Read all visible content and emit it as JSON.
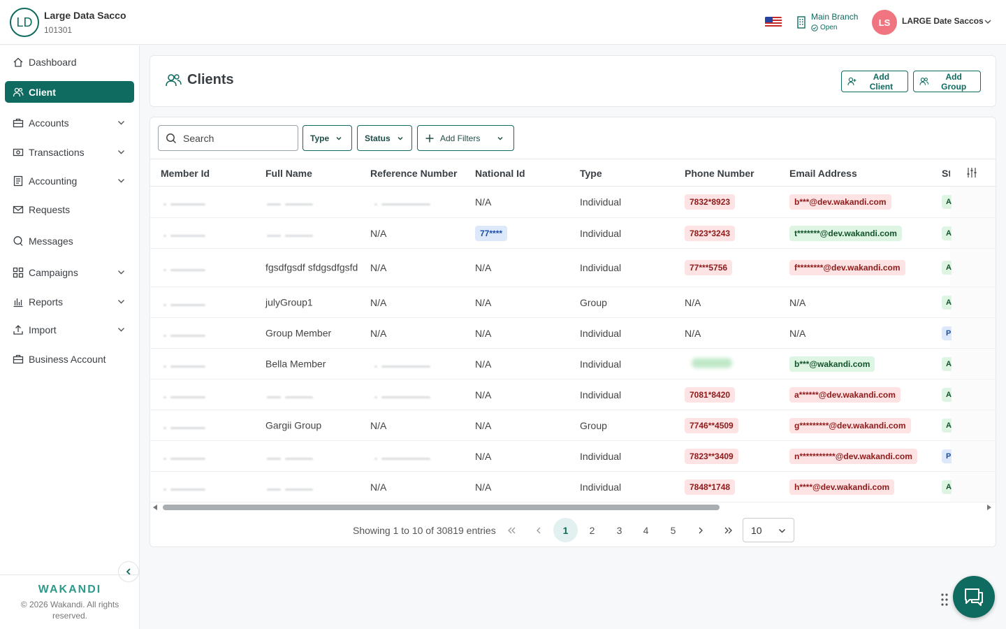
{
  "org": {
    "initials": "LD",
    "name": "Large Data Sacco",
    "code": "101301"
  },
  "topbar": {
    "branch_name": "Main Branch",
    "branch_status": "Open",
    "user_initials": "LS",
    "user_name": "LARGE Date Saccos"
  },
  "sidebar": {
    "items": [
      {
        "label": "Dashboard",
        "icon": "home-icon",
        "expandable": false,
        "active": false
      },
      {
        "label": "Client",
        "icon": "users-icon",
        "expandable": false,
        "active": true
      },
      {
        "label": "Accounts",
        "icon": "briefcase-icon",
        "expandable": true,
        "active": false
      },
      {
        "label": "Transactions",
        "icon": "cash-icon",
        "expandable": true,
        "active": false
      },
      {
        "label": "Accounting",
        "icon": "ledger-icon",
        "expandable": true,
        "active": false
      },
      {
        "label": "Requests",
        "icon": "mail-icon",
        "expandable": false,
        "active": false
      },
      {
        "label": "Messages",
        "icon": "chat-icon",
        "expandable": false,
        "active": false
      },
      {
        "label": "Campaigns",
        "icon": "grid-icon",
        "expandable": true,
        "active": false
      },
      {
        "label": "Reports",
        "icon": "bar-chart-icon",
        "expandable": true,
        "active": false
      },
      {
        "label": "Import",
        "icon": "upload-icon",
        "expandable": true,
        "active": false
      },
      {
        "label": "Business Account",
        "icon": "briefcase-icon",
        "expandable": false,
        "active": false
      }
    ],
    "footer_brand": "WAKANDI",
    "copyright": "© 2026 Wakandi. All rights reserved."
  },
  "header": {
    "title": "Clients",
    "add_client_label": "Add Client",
    "add_group_label": "Add Group"
  },
  "filters": {
    "search_placeholder": "Search",
    "type_label": "Type",
    "status_label": "Status",
    "add_filters_label": "Add Filters"
  },
  "table": {
    "columns": [
      "Member Id",
      "Full Name",
      "Reference Number",
      "National Id",
      "Type",
      "Phone Number",
      "Email Address",
      "St"
    ],
    "rows": [
      {
        "member_id": null,
        "full_name": null,
        "reference": null,
        "national_id": "N/A",
        "type": "Individual",
        "phone": "7832*8923",
        "phone_style": "red",
        "email": "b***@dev.wakandi.com",
        "email_style": "red",
        "status_style": "green",
        "status_letter": "A"
      },
      {
        "member_id": null,
        "full_name": null,
        "reference": "N/A",
        "national_id": "77****",
        "national_pill": true,
        "type": "Individual",
        "phone": "7823*3243",
        "phone_style": "red",
        "email": "t*******@dev.wakandi.com",
        "email_style": "green",
        "status_style": "green",
        "status_letter": "A"
      },
      {
        "member_id": null,
        "full_name": "fgsdfgsdf sfdgsdfgsfd",
        "reference": "N/A",
        "national_id": "N/A",
        "type": "Individual",
        "phone": "77***5756",
        "phone_style": "red",
        "email": "f********@dev.wakandi.com",
        "email_style": "red",
        "status_style": "green",
        "status_letter": "A"
      },
      {
        "member_id": null,
        "full_name": "julyGroup1",
        "reference": "N/A",
        "national_id": "N/A",
        "type": "Group",
        "phone": "N/A",
        "phone_style": "plain",
        "email": "N/A",
        "email_style": "plain",
        "status_style": "green",
        "status_letter": "A"
      },
      {
        "member_id": null,
        "full_name": "Group Member",
        "reference": "N/A",
        "national_id": "N/A",
        "type": "Individual",
        "phone": "N/A",
        "phone_style": "plain",
        "email": "N/A",
        "email_style": "plain",
        "status_style": "blue",
        "status_letter": "P"
      },
      {
        "member_id": null,
        "full_name": "Bella Member",
        "reference": null,
        "national_id": "N/A",
        "type": "Individual",
        "phone": null,
        "phone_style": "blurred",
        "email": "b***@wakandi.com",
        "email_style": "green",
        "status_style": "green",
        "status_letter": "A"
      },
      {
        "member_id": null,
        "full_name": null,
        "reference": null,
        "national_id": "N/A",
        "type": "Individual",
        "phone": "7081*8420",
        "phone_style": "red",
        "email": "a******@dev.wakandi.com",
        "email_style": "red",
        "status_style": "green",
        "status_letter": "A"
      },
      {
        "member_id": null,
        "full_name": "Gargii Group",
        "reference": "N/A",
        "national_id": "N/A",
        "type": "Group",
        "phone": "7746**4509",
        "phone_style": "red",
        "email": "g*********@dev.wakandi.com",
        "email_style": "red",
        "status_style": "green",
        "status_letter": "A"
      },
      {
        "member_id": null,
        "full_name": null,
        "reference": null,
        "national_id": "N/A",
        "type": "Individual",
        "phone": "7823**3409",
        "phone_style": "red",
        "email": "n***********@dev.wakandi.com",
        "email_style": "red",
        "status_style": "blue",
        "status_letter": "P"
      },
      {
        "member_id": null,
        "full_name": null,
        "reference": "N/A",
        "national_id": "N/A",
        "type": "Individual",
        "phone": "7848*1748",
        "phone_style": "red",
        "email": "h****@dev.wakandi.com",
        "email_style": "red",
        "status_style": "green",
        "status_letter": "A"
      }
    ]
  },
  "pagination": {
    "info": "Showing 1 to 10 of 30819 entries",
    "pages": [
      "1",
      "2",
      "3",
      "4",
      "5"
    ],
    "current": "1",
    "page_size": "10"
  },
  "colors": {
    "accent": "#0f6b5f",
    "avatar_user": "#f07580"
  }
}
